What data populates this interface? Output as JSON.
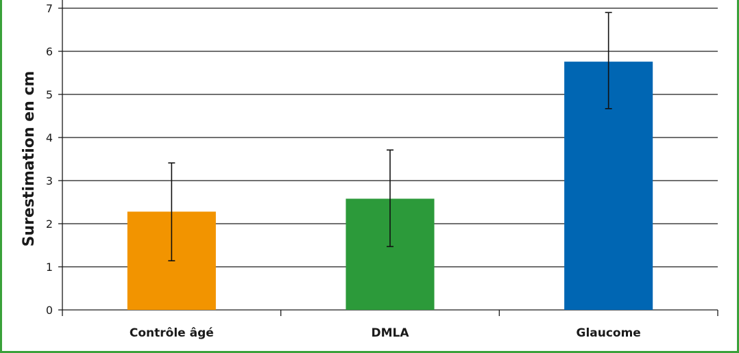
{
  "chart_data": {
    "type": "bar",
    "ylabel": "Surestimation en cm",
    "xlabel": "",
    "ylim": [
      0,
      7
    ],
    "yticks": [
      0,
      1,
      2,
      3,
      4,
      5,
      6,
      7
    ],
    "grid": true,
    "categories": [
      "Contrôle âgé",
      "DMLA",
      "Glaucome"
    ],
    "values": [
      2.28,
      2.58,
      5.76
    ],
    "error_low": [
      1.14,
      1.47,
      4.67
    ],
    "error_high": [
      3.41,
      3.71,
      6.9
    ],
    "colors": [
      "#f29400",
      "#2c9a3a",
      "#0066b3"
    ]
  }
}
